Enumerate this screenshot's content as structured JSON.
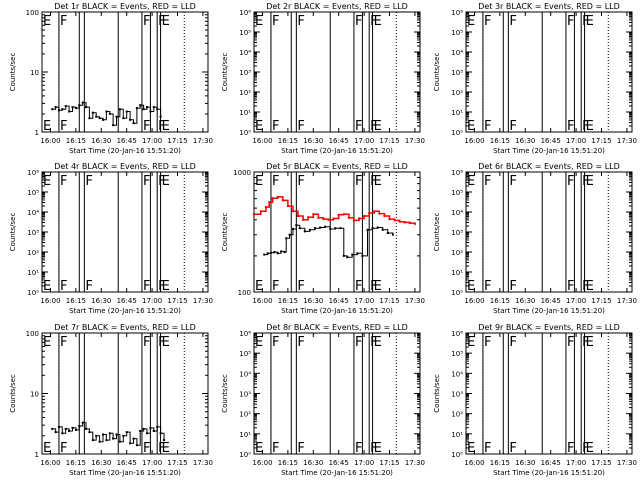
{
  "colors": {
    "background": "#ffffff",
    "axis": "#000000",
    "events": "#000000",
    "lld": "#ff0000"
  },
  "chart_data": [
    {
      "type": "line",
      "title": "Det 1r BLACK = Events, RED = LLD",
      "xlabel": "Start Time (20-Jan-16 15:51:20)",
      "ylabel": "Counts/sec",
      "xticks": [
        "16:00",
        "16:15",
        "16:30",
        "16:45",
        "17:00",
        "17:15",
        "17:30"
      ],
      "xlim": [
        "15:55",
        "17:33"
      ],
      "yscale": "log",
      "ylim": [
        1,
        100
      ],
      "yticks": [
        {
          "value": 1,
          "label": "1"
        },
        {
          "value": 10,
          "label": "10"
        },
        {
          "value": 100,
          "label": "100"
        }
      ],
      "markers": [
        {
          "time": "16:05",
          "label": "F"
        },
        {
          "time": "16:17",
          "label": ""
        },
        {
          "time": "16:20",
          "label": ""
        },
        {
          "time": "16:40",
          "label": ""
        },
        {
          "time": "16:54",
          "label": "F"
        },
        {
          "time": "16:59",
          "label": ""
        },
        {
          "time": "17:03",
          "label": "F"
        },
        {
          "time": "17:05",
          "label": "E"
        }
      ],
      "dotted": [
        "16:05",
        "17:19"
      ],
      "edge_labels": [
        "E"
      ],
      "series": [
        {
          "role": "events",
          "color": "#000000",
          "x": [
            "16:01",
            "16:03",
            "16:05",
            "16:07",
            "16:09",
            "16:11",
            "16:13",
            "16:15",
            "16:17",
            "16:19",
            "16:21",
            "16:23",
            "16:25",
            "16:27",
            "16:29",
            "16:31",
            "16:33",
            "16:35",
            "16:37",
            "16:39",
            "16:41",
            "16:43",
            "16:45",
            "16:47",
            "16:49",
            "16:51",
            "16:53",
            "16:55",
            "16:57",
            "16:59",
            "17:01",
            "17:03",
            "17:05"
          ],
          "y": [
            2.4,
            2.6,
            2.3,
            2.4,
            2.7,
            2.2,
            2.6,
            2.5,
            2.8,
            3.1,
            2.6,
            1.7,
            2.1,
            1.8,
            1.7,
            1.6,
            2.2,
            2.0,
            1.3,
            1.8,
            2.4,
            1.7,
            2.2,
            1.6,
            1.4,
            2.5,
            2.8,
            2.4,
            2.6,
            2.2,
            2.6,
            2.4,
            1.8
          ]
        }
      ]
    },
    {
      "type": "line",
      "title": "Det 2r BLACK = Events, RED = LLD",
      "xlabel": "Start Time (20-Jan-16 15:51:20)",
      "ylabel": "Counts/sec",
      "xticks": [
        "16:00",
        "16:15",
        "16:30",
        "16:45",
        "17:00",
        "17:15",
        "17:30"
      ],
      "xlim": [
        "15:55",
        "17:33"
      ],
      "yscale": "log",
      "ylim": [
        1,
        1000000
      ],
      "yticks": [
        {
          "value": 1,
          "label": "10⁰"
        },
        {
          "value": 10,
          "label": "10¹"
        },
        {
          "value": 100,
          "label": "10²"
        },
        {
          "value": 1000,
          "label": "10³"
        },
        {
          "value": 10000,
          "label": "10⁴"
        },
        {
          "value": 100000,
          "label": "10⁵"
        },
        {
          "value": 1000000,
          "label": "10⁶"
        }
      ],
      "markers": [
        {
          "time": "16:05",
          "label": "F"
        },
        {
          "time": "16:17",
          "label": ""
        },
        {
          "time": "16:20",
          "label": "F"
        },
        {
          "time": "16:40",
          "label": ""
        },
        {
          "time": "16:54",
          "label": "F"
        },
        {
          "time": "16:59",
          "label": ""
        },
        {
          "time": "17:03",
          "label": "F"
        },
        {
          "time": "17:05",
          "label": "E"
        }
      ],
      "dotted": [
        "16:05",
        "17:19"
      ],
      "edge_labels": [
        "E"
      ],
      "series": []
    },
    {
      "type": "line",
      "title": "Det 3r BLACK = Events, RED = LLD",
      "xlabel": "Start Time (20-Jan-16 15:51:20)",
      "ylabel": "Counts/sec",
      "xticks": [
        "16:00",
        "16:15",
        "16:30",
        "16:45",
        "17:00",
        "17:15",
        "17:30"
      ],
      "xlim": [
        "15:55",
        "17:33"
      ],
      "yscale": "log",
      "ylim": [
        1,
        1000000
      ],
      "yticks": [
        {
          "value": 1,
          "label": "10⁰"
        },
        {
          "value": 10,
          "label": "10¹"
        },
        {
          "value": 100,
          "label": "10²"
        },
        {
          "value": 1000,
          "label": "10³"
        },
        {
          "value": 10000,
          "label": "10⁴"
        },
        {
          "value": 100000,
          "label": "10⁵"
        },
        {
          "value": 1000000,
          "label": "10⁶"
        }
      ],
      "markers": [
        {
          "time": "16:05",
          "label": "F"
        },
        {
          "time": "16:17",
          "label": ""
        },
        {
          "time": "16:20",
          "label": "F"
        },
        {
          "time": "16:40",
          "label": ""
        },
        {
          "time": "16:54",
          "label": "F"
        },
        {
          "time": "16:59",
          "label": ""
        },
        {
          "time": "17:03",
          "label": "F"
        },
        {
          "time": "17:05",
          "label": "E"
        }
      ],
      "dotted": [
        "16:05",
        "17:19"
      ],
      "edge_labels": [
        "E"
      ],
      "series": []
    },
    {
      "type": "line",
      "title": "Det 4r BLACK = Events, RED = LLD",
      "xlabel": "Start Time (20-Jan-16 15:51:20)",
      "ylabel": "Counts/sec",
      "xticks": [
        "16:00",
        "16:15",
        "16:30",
        "16:45",
        "17:00",
        "17:15",
        "17:30"
      ],
      "xlim": [
        "15:55",
        "17:33"
      ],
      "yscale": "log",
      "ylim": [
        1,
        1000000
      ],
      "yticks": [
        {
          "value": 1,
          "label": "10⁰"
        },
        {
          "value": 10,
          "label": "10¹"
        },
        {
          "value": 100,
          "label": "10²"
        },
        {
          "value": 1000,
          "label": "10³"
        },
        {
          "value": 10000,
          "label": "10⁴"
        },
        {
          "value": 100000,
          "label": "10⁵"
        },
        {
          "value": 1000000,
          "label": "10⁶"
        }
      ],
      "markers": [
        {
          "time": "16:05",
          "label": "F"
        },
        {
          "time": "16:17",
          "label": ""
        },
        {
          "time": "16:20",
          "label": "F"
        },
        {
          "time": "16:40",
          "label": ""
        },
        {
          "time": "16:54",
          "label": "F"
        },
        {
          "time": "16:59",
          "label": ""
        },
        {
          "time": "17:03",
          "label": "F"
        },
        {
          "time": "17:05",
          "label": "E"
        }
      ],
      "dotted": [
        "16:05",
        "17:19"
      ],
      "edge_labels": [
        "E"
      ],
      "series": []
    },
    {
      "type": "line",
      "title": "Det 5r BLACK = Events, RED = LLD",
      "xlabel": "Start Time (20-Jan-16 15:51:20)",
      "ylabel": "Counts/sec",
      "xticks": [
        "16:00",
        "16:15",
        "16:30",
        "16:45",
        "17:00",
        "17:15",
        "17:30"
      ],
      "xlim": [
        "15:55",
        "17:33"
      ],
      "yscale": "log",
      "ylim": [
        100,
        1000
      ],
      "yticks": [
        {
          "value": 100,
          "label": "100"
        },
        {
          "value": 1000,
          "label": "1000"
        }
      ],
      "markers": [
        {
          "time": "16:05",
          "label": "F"
        },
        {
          "time": "16:17",
          "label": ""
        },
        {
          "time": "16:20",
          "label": "F"
        },
        {
          "time": "16:40",
          "label": ""
        },
        {
          "time": "16:54",
          "label": "F"
        },
        {
          "time": "16:59",
          "label": ""
        },
        {
          "time": "17:03",
          "label": "F"
        },
        {
          "time": "17:05",
          "label": "E"
        }
      ],
      "dotted": [
        "16:05",
        "17:19"
      ],
      "edge_labels": [
        "E"
      ],
      "series": [
        {
          "role": "lld",
          "color": "#ff0000",
          "x": [
            "15:55",
            "15:59",
            "16:02",
            "16:04",
            "16:06",
            "16:09",
            "16:12",
            "16:15",
            "16:18",
            "16:21",
            "16:24",
            "16:27",
            "16:30",
            "16:33",
            "16:36",
            "16:39",
            "16:42",
            "16:45",
            "16:48",
            "16:51",
            "16:54",
            "16:57",
            "17:00",
            "17:03",
            "17:06",
            "17:09",
            "17:12",
            "17:15",
            "17:18",
            "17:21",
            "17:24",
            "17:27",
            "17:30"
          ],
          "y": [
            445,
            470,
            510,
            560,
            605,
            620,
            580,
            520,
            470,
            430,
            400,
            420,
            445,
            415,
            405,
            400,
            410,
            440,
            445,
            415,
            395,
            410,
            430,
            455,
            470,
            450,
            430,
            405,
            395,
            385,
            380,
            375,
            370
          ]
        },
        {
          "role": "events",
          "color": "#000000",
          "x": [
            "16:01",
            "16:03",
            "16:05",
            "16:07",
            "16:09",
            "16:11",
            "16:13",
            "16:14",
            "16:16",
            "16:18",
            "16:20",
            "16:22",
            "16:25",
            "16:28",
            "16:31",
            "16:34",
            "16:37",
            "16:40",
            "16:43",
            "16:46",
            "16:48",
            "16:50",
            "16:53",
            "16:56",
            "16:59",
            "17:02",
            "17:05",
            "17:08",
            "17:11",
            "17:14",
            "17:17"
          ],
          "y": [
            205,
            210,
            212,
            215,
            210,
            218,
            215,
            280,
            300,
            335,
            360,
            340,
            320,
            330,
            340,
            345,
            350,
            335,
            340,
            340,
            200,
            195,
            205,
            210,
            200,
            330,
            340,
            345,
            330,
            310,
            300
          ]
        }
      ]
    },
    {
      "type": "line",
      "title": "Det 6r BLACK = Events, RED = LLD",
      "xlabel": "Start Time (20-Jan-16 15:51:20)",
      "ylabel": "Counts/sec",
      "xticks": [
        "16:00",
        "16:15",
        "16:30",
        "16:45",
        "17:00",
        "17:15",
        "17:30"
      ],
      "xlim": [
        "15:55",
        "17:33"
      ],
      "yscale": "log",
      "ylim": [
        1,
        1000000
      ],
      "yticks": [
        {
          "value": 1,
          "label": "10⁰"
        },
        {
          "value": 10,
          "label": "10¹"
        },
        {
          "value": 100,
          "label": "10²"
        },
        {
          "value": 1000,
          "label": "10³"
        },
        {
          "value": 10000,
          "label": "10⁴"
        },
        {
          "value": 100000,
          "label": "10⁵"
        },
        {
          "value": 1000000,
          "label": "10⁶"
        }
      ],
      "markers": [
        {
          "time": "16:05",
          "label": "F"
        },
        {
          "time": "16:17",
          "label": ""
        },
        {
          "time": "16:20",
          "label": "F"
        },
        {
          "time": "16:40",
          "label": ""
        },
        {
          "time": "16:54",
          "label": "F"
        },
        {
          "time": "16:59",
          "label": ""
        },
        {
          "time": "17:03",
          "label": "F"
        },
        {
          "time": "17:05",
          "label": "E"
        }
      ],
      "dotted": [
        "16:05",
        "17:19"
      ],
      "edge_labels": [
        "E"
      ],
      "series": []
    },
    {
      "type": "line",
      "title": "Det 7r BLACK = Events, RED = LLD",
      "xlabel": "Start Time (20-Jan-16 15:51:20)",
      "ylabel": "Counts/sec",
      "xticks": [
        "16:00",
        "16:15",
        "16:30",
        "16:45",
        "17:00",
        "17:15",
        "17:30"
      ],
      "xlim": [
        "15:55",
        "17:33"
      ],
      "yscale": "log",
      "ylim": [
        1,
        100
      ],
      "yticks": [
        {
          "value": 1,
          "label": "1"
        },
        {
          "value": 10,
          "label": "10"
        },
        {
          "value": 100,
          "label": "100"
        }
      ],
      "markers": [
        {
          "time": "16:05",
          "label": "F"
        },
        {
          "time": "16:17",
          "label": ""
        },
        {
          "time": "16:20",
          "label": ""
        },
        {
          "time": "16:40",
          "label": ""
        },
        {
          "time": "16:54",
          "label": "F"
        },
        {
          "time": "16:59",
          "label": ""
        },
        {
          "time": "17:03",
          "label": "F"
        },
        {
          "time": "17:05",
          "label": "E"
        }
      ],
      "dotted": [
        "16:05",
        "17:19"
      ],
      "edge_labels": [
        "E"
      ],
      "series": [
        {
          "role": "events",
          "color": "#000000",
          "x": [
            "16:01",
            "16:03",
            "16:05",
            "16:07",
            "16:09",
            "16:11",
            "16:13",
            "16:15",
            "16:17",
            "16:19",
            "16:21",
            "16:23",
            "16:25",
            "16:27",
            "16:29",
            "16:31",
            "16:33",
            "16:35",
            "16:37",
            "16:39",
            "16:41",
            "16:43",
            "16:45",
            "16:47",
            "16:49",
            "16:51",
            "16:53",
            "16:55",
            "16:57",
            "16:59",
            "17:01",
            "17:03",
            "17:05",
            "17:07"
          ],
          "y": [
            2.6,
            2.3,
            2.8,
            2.2,
            2.6,
            2.4,
            2.7,
            2.5,
            2.9,
            3.3,
            2.6,
            2.3,
            1.7,
            2.0,
            1.6,
            2.1,
            1.7,
            2.2,
            1.8,
            2.1,
            1.6,
            2.0,
            2.3,
            1.5,
            1.8,
            1.4,
            2.4,
            2.6,
            2.2,
            2.7,
            2.4,
            2.8,
            2.2,
            1.7
          ]
        }
      ]
    },
    {
      "type": "line",
      "title": "Det 8r BLACK = Events, RED = LLD",
      "xlabel": "Start Time (20-Jan-16 15:51:20)",
      "ylabel": "Counts/sec",
      "xticks": [
        "16:00",
        "16:15",
        "16:30",
        "16:45",
        "17:00",
        "17:15",
        "17:30"
      ],
      "xlim": [
        "15:55",
        "17:33"
      ],
      "yscale": "log",
      "ylim": [
        1,
        1000000
      ],
      "yticks": [
        {
          "value": 1,
          "label": "10⁰"
        },
        {
          "value": 10,
          "label": "10¹"
        },
        {
          "value": 100,
          "label": "10²"
        },
        {
          "value": 1000,
          "label": "10³"
        },
        {
          "value": 10000,
          "label": "10⁴"
        },
        {
          "value": 100000,
          "label": "10⁵"
        },
        {
          "value": 1000000,
          "label": "10⁶"
        }
      ],
      "markers": [
        {
          "time": "16:05",
          "label": "F"
        },
        {
          "time": "16:17",
          "label": ""
        },
        {
          "time": "16:20",
          "label": "F"
        },
        {
          "time": "16:40",
          "label": ""
        },
        {
          "time": "16:54",
          "label": "F"
        },
        {
          "time": "16:59",
          "label": ""
        },
        {
          "time": "17:03",
          "label": "F"
        },
        {
          "time": "17:05",
          "label": "E"
        }
      ],
      "dotted": [
        "16:05",
        "17:19"
      ],
      "edge_labels": [
        "E"
      ],
      "series": []
    },
    {
      "type": "line",
      "title": "Det 9r BLACK = Events, RED = LLD",
      "xlabel": "Start Time (20-Jan-16 15:51:20)",
      "ylabel": "Counts/sec",
      "xticks": [
        "16:00",
        "16:15",
        "16:30",
        "16:45",
        "17:00",
        "17:15",
        "17:30"
      ],
      "xlim": [
        "15:55",
        "17:33"
      ],
      "yscale": "log",
      "ylim": [
        1,
        1000000
      ],
      "yticks": [
        {
          "value": 1,
          "label": "10⁰"
        },
        {
          "value": 10,
          "label": "10¹"
        },
        {
          "value": 100,
          "label": "10²"
        },
        {
          "value": 1000,
          "label": "10³"
        },
        {
          "value": 10000,
          "label": "10⁴"
        },
        {
          "value": 100000,
          "label": "10⁵"
        },
        {
          "value": 1000000,
          "label": "10⁶"
        }
      ],
      "markers": [
        {
          "time": "16:05",
          "label": "F"
        },
        {
          "time": "16:17",
          "label": ""
        },
        {
          "time": "16:20",
          "label": "F"
        },
        {
          "time": "16:40",
          "label": ""
        },
        {
          "time": "16:54",
          "label": "F"
        },
        {
          "time": "16:59",
          "label": ""
        },
        {
          "time": "17:03",
          "label": "F"
        },
        {
          "time": "17:05",
          "label": "E"
        }
      ],
      "dotted": [
        "16:05",
        "17:19"
      ],
      "edge_labels": [
        "E"
      ],
      "series": []
    }
  ]
}
